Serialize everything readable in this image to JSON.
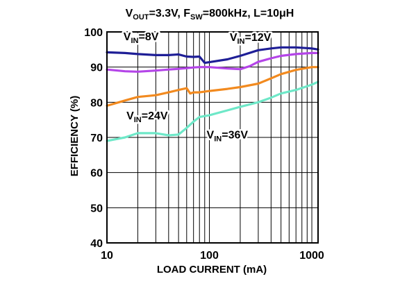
{
  "chart_data": {
    "type": "line",
    "title": {
      "parts": [
        {
          "text": "V",
          "sub": false
        },
        {
          "text": "OUT",
          "sub": true
        },
        {
          "text": "=3.3V, F",
          "sub": false
        },
        {
          "text": "SW",
          "sub": true
        },
        {
          "text": "=800kHz, L=10μH",
          "sub": false
        }
      ]
    },
    "xlabel": "LOAD CURRENT (mA)",
    "ylabel": "EFFICIENCY (%)",
    "xscale": "log",
    "xlim": [
      10,
      1150
    ],
    "ylim": [
      40,
      100
    ],
    "grid": true,
    "xticks": [
      10,
      100,
      1000
    ],
    "yticks": [
      40,
      50,
      60,
      70,
      80,
      90,
      100
    ],
    "series": [
      {
        "name": "V_IN=8V",
        "label_parts": [
          {
            "text": "V",
            "sub": false
          },
          {
            "text": "IN",
            "sub": true
          },
          {
            "text": "=8V",
            "sub": false
          }
        ],
        "color": "#1e1e96",
        "x": [
          10,
          15,
          20,
          30,
          40,
          50,
          60,
          70,
          80,
          90,
          100,
          150,
          200,
          300,
          400,
          500,
          700,
          1000,
          1150
        ],
        "y": [
          94.2,
          94.0,
          93.7,
          93.4,
          93.4,
          93.6,
          93.0,
          92.9,
          93.0,
          91.2,
          91.4,
          92.2,
          93.2,
          94.8,
          95.3,
          95.6,
          95.6,
          95.3,
          95.0
        ]
      },
      {
        "name": "V_IN=12V",
        "label_parts": [
          {
            "text": "V",
            "sub": false
          },
          {
            "text": "IN",
            "sub": true
          },
          {
            "text": "=12V",
            "sub": false
          }
        ],
        "color": "#b445e8",
        "x": [
          10,
          15,
          20,
          30,
          40,
          50,
          60,
          70,
          80,
          90,
          100,
          150,
          200,
          250,
          300,
          400,
          500,
          700,
          1000,
          1150
        ],
        "y": [
          89.3,
          88.8,
          88.7,
          89.0,
          89.3,
          89.5,
          89.7,
          89.9,
          90.0,
          90.0,
          90.0,
          89.6,
          89.4,
          90.3,
          91.5,
          92.5,
          93.2,
          93.7,
          94.0,
          94.0
        ]
      },
      {
        "name": "V_IN=24V",
        "label_parts": [
          {
            "text": "V",
            "sub": false
          },
          {
            "text": "IN",
            "sub": true
          },
          {
            "text": "=24V",
            "sub": false
          }
        ],
        "color": "#f28a1f",
        "x": [
          10,
          15,
          20,
          30,
          40,
          50,
          60,
          65,
          70,
          80,
          100,
          150,
          200,
          300,
          400,
          500,
          700,
          1000,
          1150
        ],
        "y": [
          79.0,
          80.5,
          81.5,
          82.0,
          82.8,
          83.5,
          84.0,
          82.5,
          82.8,
          82.8,
          83.2,
          83.8,
          84.3,
          85.3,
          86.8,
          88.0,
          89.2,
          90.0,
          90.0
        ]
      },
      {
        "name": "V_IN=36V",
        "label_parts": [
          {
            "text": "V",
            "sub": false
          },
          {
            "text": "IN",
            "sub": true
          },
          {
            "text": "=36V",
            "sub": false
          }
        ],
        "color": "#6ee8c8",
        "x": [
          10,
          15,
          20,
          30,
          40,
          50,
          60,
          70,
          80,
          100,
          150,
          200,
          300,
          400,
          500,
          700,
          1000,
          1150
        ],
        "y": [
          69.0,
          70.0,
          71.2,
          71.2,
          70.6,
          70.8,
          72.7,
          74.5,
          75.8,
          76.3,
          77.7,
          78.7,
          80.0,
          81.3,
          82.5,
          83.5,
          85.0,
          85.8
        ]
      }
    ],
    "annotations": [
      {
        "series": "V_IN=8V",
        "x": 14.5,
        "y": 97.6
      },
      {
        "series": "V_IN=12V",
        "x": 158,
        "y": 97.4
      },
      {
        "series": "V_IN=24V",
        "x": 15.5,
        "y": 75.1
      },
      {
        "series": "V_IN=36V",
        "x": 94,
        "y": 69.7
      }
    ]
  }
}
